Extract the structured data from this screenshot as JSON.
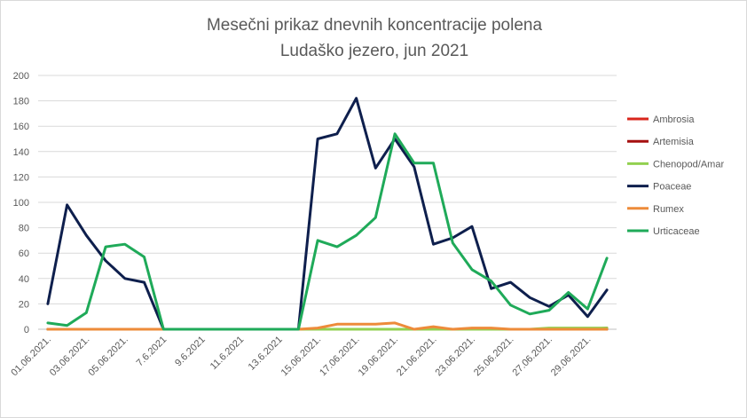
{
  "chart_data": {
    "type": "line",
    "title": [
      "Mesečni prikaz dnevnih koncentracije polena",
      "Ludaško jezero, jun 2021"
    ],
    "xlabel": "",
    "ylabel": "",
    "ylim": [
      0,
      200
    ],
    "yticks": [
      0,
      20,
      40,
      60,
      80,
      100,
      120,
      140,
      160,
      180,
      200
    ],
    "grid": "horizontal",
    "legend_position": "right",
    "categories": [
      "01.06.2021.",
      "02.06.2021.",
      "03.06.2021.",
      "04.06.2021.",
      "05.06.2021.",
      "06.06.2021.",
      "7.6.2021",
      "8.6.2021",
      "9.6.2021",
      "10.6.2021",
      "11.6.2021",
      "12.6.2021",
      "13.6.2021",
      "14.6.2021",
      "15.06.2021.",
      "16.06.2021.",
      "17.06.2021.",
      "18.06.2021.",
      "19.06.2021.",
      "20.06.2021.",
      "21.06.2021.",
      "22.06.2021.",
      "23.06.2021.",
      "24.06.2021.",
      "25.06.2021.",
      "26.06.2021.",
      "27.06.2021.",
      "28.06.2021.",
      "29.06.2021.",
      "30.06.2021."
    ],
    "visible_tick_labels": [
      "01.06.2021.",
      "03.06.2021.",
      "05.06.2021.",
      "7.6.2021",
      "9.6.2021",
      "11.6.2021",
      "13.6.2021",
      "15.06.2021.",
      "17.06.2021.",
      "19.06.2021.",
      "21.06.2021.",
      "23.06.2021.",
      "25.06.2021.",
      "27.06.2021.",
      "29.06.2021."
    ],
    "series": [
      {
        "name": "Ambrosia",
        "color": "#d9261c",
        "values": [
          0,
          0,
          0,
          0,
          0,
          0,
          0,
          0,
          0,
          0,
          0,
          0,
          0,
          0,
          0,
          0,
          0,
          0,
          0,
          0,
          0,
          0,
          0,
          0,
          0,
          0,
          0,
          0,
          0,
          1
        ]
      },
      {
        "name": "Artemisia",
        "color": "#a50f0f",
        "values": [
          0,
          0,
          0,
          0,
          0,
          0,
          0,
          0,
          0,
          0,
          0,
          0,
          0,
          0,
          0,
          0,
          0,
          0,
          0,
          0,
          0,
          0,
          0,
          0,
          0,
          0,
          0,
          0,
          0,
          0
        ]
      },
      {
        "name": "Chenopod/Amar",
        "color": "#92d050",
        "values": [
          0,
          0,
          0,
          0,
          0,
          0,
          0,
          0,
          0,
          0,
          0,
          0,
          0,
          0,
          0,
          0,
          0,
          0,
          0,
          0,
          0,
          0,
          0,
          0,
          0,
          0,
          1,
          1,
          1,
          1
        ]
      },
      {
        "name": "Poaceae",
        "color": "#0e1f4d",
        "values": [
          20,
          98,
          74,
          54,
          40,
          37,
          0,
          0,
          0,
          0,
          0,
          0,
          0,
          0,
          150,
          154,
          182,
          127,
          150,
          128,
          67,
          72,
          81,
          32,
          37,
          25,
          18,
          27,
          10,
          31
        ]
      },
      {
        "name": "Rumex",
        "color": "#ed8b3a",
        "values": [
          0,
          0,
          0,
          0,
          0,
          0,
          0,
          0,
          0,
          0,
          0,
          0,
          0,
          0,
          1,
          4,
          4,
          4,
          5,
          0,
          2,
          0,
          1,
          1,
          0,
          0,
          0,
          0,
          0,
          0
        ]
      },
      {
        "name": "Urticaceae",
        "color": "#1faa59",
        "values": [
          5,
          3,
          13,
          65,
          67,
          57,
          0,
          0,
          0,
          0,
          0,
          0,
          0,
          0,
          70,
          65,
          74,
          88,
          154,
          131,
          131,
          68,
          47,
          38,
          19,
          12,
          15,
          29,
          16,
          56
        ]
      }
    ]
  }
}
